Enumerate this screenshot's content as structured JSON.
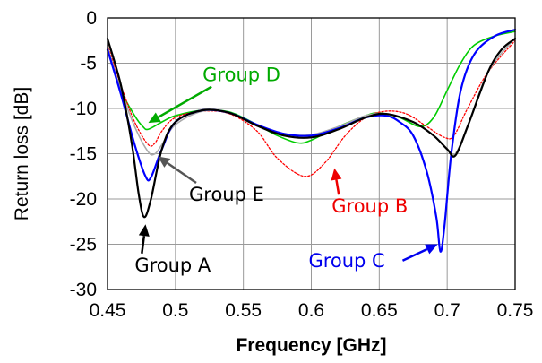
{
  "chart_data": {
    "type": "line",
    "xlabel": "Frequency [GHz]",
    "ylabel": "Return loss [dB]",
    "xlim": [
      0.45,
      0.75
    ],
    "ylim": [
      -30,
      0
    ],
    "xticks": [
      "0.45",
      "0.5",
      "0.55",
      "0.6",
      "0.65",
      "0.7",
      "0.75"
    ],
    "yticks": [
      "0",
      "-5",
      "-10",
      "-15",
      "-20",
      "-25",
      "-30"
    ],
    "grid": true,
    "series": [
      {
        "name": "Group D",
        "color": "#00cc00",
        "style": "solid",
        "points": [
          [
            0.45,
            -3.5
          ],
          [
            0.46,
            -8
          ],
          [
            0.47,
            -10.8
          ],
          [
            0.476,
            -12
          ],
          [
            0.48,
            -12.3
          ],
          [
            0.49,
            -11.5
          ],
          [
            0.5,
            -10.8
          ],
          [
            0.52,
            -10.2
          ],
          [
            0.54,
            -10.4
          ],
          [
            0.56,
            -11.8
          ],
          [
            0.575,
            -13
          ],
          [
            0.59,
            -13.8
          ],
          [
            0.6,
            -13.5
          ],
          [
            0.62,
            -12
          ],
          [
            0.64,
            -10.8
          ],
          [
            0.65,
            -10.5
          ],
          [
            0.665,
            -11
          ],
          [
            0.68,
            -12
          ],
          [
            0.69,
            -11
          ],
          [
            0.7,
            -8
          ],
          [
            0.71,
            -5
          ],
          [
            0.72,
            -3
          ],
          [
            0.735,
            -2
          ],
          [
            0.75,
            -1.5
          ]
        ]
      },
      {
        "name": "Group B",
        "color": "#ff0000",
        "style": "dotted",
        "points": [
          [
            0.45,
            -3
          ],
          [
            0.46,
            -7.5
          ],
          [
            0.47,
            -11.5
          ],
          [
            0.48,
            -14
          ],
          [
            0.485,
            -13.8
          ],
          [
            0.49,
            -12.5
          ],
          [
            0.5,
            -11
          ],
          [
            0.52,
            -10.3
          ],
          [
            0.54,
            -10.6
          ],
          [
            0.56,
            -12.5
          ],
          [
            0.575,
            -15.5
          ],
          [
            0.595,
            -17.5
          ],
          [
            0.61,
            -16
          ],
          [
            0.625,
            -13
          ],
          [
            0.64,
            -11
          ],
          [
            0.655,
            -10.3
          ],
          [
            0.67,
            -10.6
          ],
          [
            0.685,
            -12
          ],
          [
            0.698,
            -13.2
          ],
          [
            0.705,
            -13
          ],
          [
            0.715,
            -10
          ],
          [
            0.73,
            -6
          ],
          [
            0.75,
            -2.5
          ]
        ]
      },
      {
        "name": "Group E",
        "color": "#aaaaaa",
        "style": "solid",
        "points": [
          [
            0.45,
            -3.2
          ],
          [
            0.46,
            -8
          ],
          [
            0.47,
            -12
          ],
          [
            0.48,
            -14.8
          ],
          [
            0.485,
            -15
          ],
          [
            0.49,
            -14
          ],
          [
            0.5,
            -11.8
          ],
          [
            0.52,
            -10.3
          ],
          [
            0.54,
            -10.5
          ],
          [
            0.56,
            -11.8
          ],
          [
            0.58,
            -12.8
          ],
          [
            0.6,
            -12.9
          ],
          [
            0.62,
            -12
          ],
          [
            0.64,
            -10.8
          ],
          [
            0.655,
            -10.6
          ],
          [
            0.675,
            -11.5
          ],
          [
            0.69,
            -13
          ],
          [
            0.7,
            -14.5
          ],
          [
            0.706,
            -15
          ],
          [
            0.715,
            -12
          ],
          [
            0.73,
            -6
          ],
          [
            0.75,
            -2.2
          ]
        ]
      },
      {
        "name": "Group C",
        "color": "#0000ff",
        "style": "solid",
        "points": [
          [
            0.45,
            -3.5
          ],
          [
            0.46,
            -8.5
          ],
          [
            0.47,
            -14
          ],
          [
            0.478,
            -17.5
          ],
          [
            0.482,
            -17.6
          ],
          [
            0.49,
            -14.5
          ],
          [
            0.5,
            -11.5
          ],
          [
            0.52,
            -10.2
          ],
          [
            0.54,
            -10.5
          ],
          [
            0.56,
            -11.8
          ],
          [
            0.58,
            -12.8
          ],
          [
            0.6,
            -13
          ],
          [
            0.62,
            -12.2
          ],
          [
            0.64,
            -11
          ],
          [
            0.655,
            -10.8
          ],
          [
            0.665,
            -11.5
          ],
          [
            0.675,
            -13
          ],
          [
            0.685,
            -17
          ],
          [
            0.692,
            -22
          ],
          [
            0.695,
            -25.8
          ],
          [
            0.698,
            -23
          ],
          [
            0.703,
            -15
          ],
          [
            0.71,
            -8
          ],
          [
            0.72,
            -4
          ],
          [
            0.735,
            -2
          ],
          [
            0.75,
            -1.3
          ]
        ]
      },
      {
        "name": "Group A",
        "color": "#000000",
        "style": "solid",
        "points": [
          [
            0.45,
            -2.3
          ],
          [
            0.46,
            -7.5
          ],
          [
            0.468,
            -14
          ],
          [
            0.473,
            -19.5
          ],
          [
            0.477,
            -22
          ],
          [
            0.482,
            -20
          ],
          [
            0.49,
            -14.5
          ],
          [
            0.5,
            -11.5
          ],
          [
            0.52,
            -10.2
          ],
          [
            0.54,
            -10.5
          ],
          [
            0.56,
            -11.9
          ],
          [
            0.58,
            -13
          ],
          [
            0.6,
            -13.2
          ],
          [
            0.62,
            -12.3
          ],
          [
            0.64,
            -11
          ],
          [
            0.655,
            -10.6
          ],
          [
            0.675,
            -11.5
          ],
          [
            0.69,
            -13
          ],
          [
            0.7,
            -14.5
          ],
          [
            0.706,
            -15.2
          ],
          [
            0.715,
            -12
          ],
          [
            0.73,
            -6
          ],
          [
            0.74,
            -3.5
          ],
          [
            0.75,
            -2.3
          ]
        ]
      }
    ],
    "annotations": [
      {
        "text": "Group D",
        "color": "#00aa00",
        "arrow_color": "#00aa00",
        "text_x": 0.52,
        "text_y": -7,
        "target_x": 0.48,
        "target_y": -11.6
      },
      {
        "text": "Group E",
        "color": "#000000",
        "arrow_color": "#555555",
        "text_x": 0.51,
        "text_y": -20.2,
        "target_x": 0.487,
        "target_y": -15.3
      },
      {
        "text": "Group B",
        "color": "#ee0000",
        "arrow_color": "#ee0000",
        "text_x": 0.615,
        "text_y": -21.5,
        "target_x": 0.617,
        "target_y": -16.6
      },
      {
        "text": "Group A",
        "color": "#000000",
        "arrow_color": "#000000",
        "text_x": 0.47,
        "text_y": -28,
        "target_x": 0.478,
        "target_y": -22.8
      },
      {
        "text": "Group C",
        "color": "#0000ee",
        "arrow_color": "#0000ee",
        "text_x": 0.598,
        "text_y": -27.5,
        "target_x": 0.693,
        "target_y": -25
      }
    ]
  }
}
